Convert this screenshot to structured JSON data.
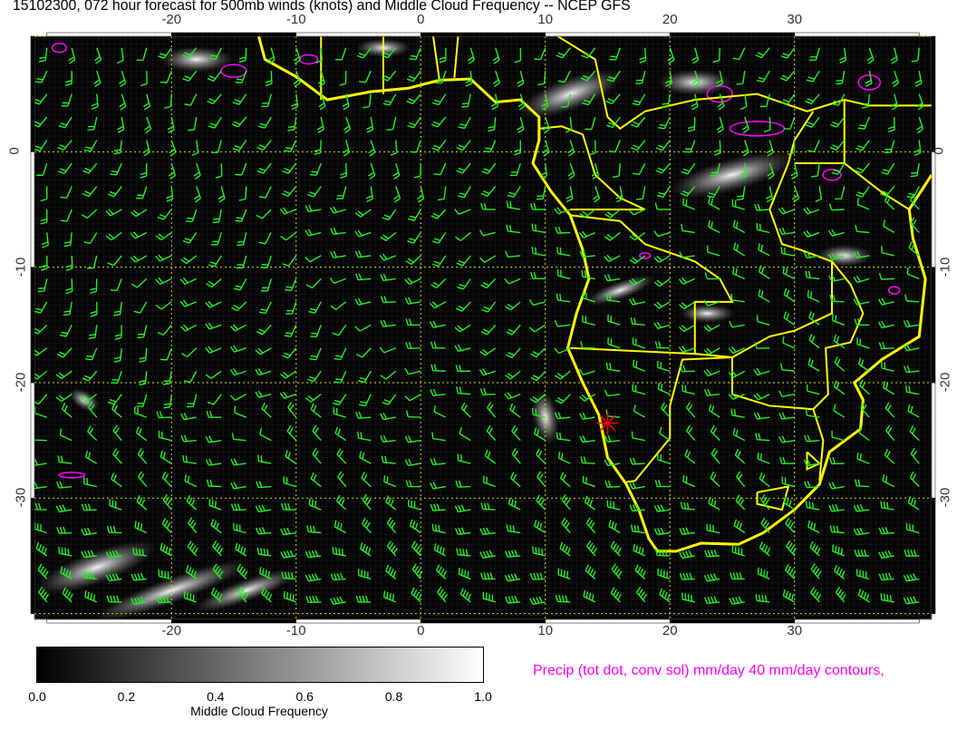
{
  "title": "15102300, 072 hour forecast for 500mb winds (knots) and Middle Cloud Frequency -- NCEP GFS",
  "map": {
    "lon_range": [
      -31,
      41
    ],
    "lat_range": [
      -40.5,
      10
    ],
    "lon_ticks": [
      "-20",
      "-10",
      "0",
      "10",
      "20",
      "30"
    ],
    "lon_tick_values": [
      -20,
      -10,
      0,
      10,
      20,
      30
    ],
    "lat_ticks": [
      "0",
      "-10",
      "-20",
      "-30"
    ],
    "lat_tick_values": [
      0,
      -10,
      -20,
      -30
    ],
    "gridlines": true,
    "colors": {
      "coast": "#ffff00",
      "barbs": "#22ee22",
      "precip": "#ff00ff",
      "grid": "#dddd00",
      "marker": "#ff0000"
    },
    "marker": {
      "icon": "red-star-marker",
      "lon": 15,
      "lat": -23.5
    }
  },
  "colorbar": {
    "labels": [
      "0.0",
      "0.2",
      "0.4",
      "0.6",
      "0.8",
      "1.0"
    ],
    "title": "Middle Cloud Frequency",
    "range": [
      0,
      1
    ]
  },
  "precip_label": "Precip (tot dot, conv sol) mm/day 40 mm/day contours,"
}
